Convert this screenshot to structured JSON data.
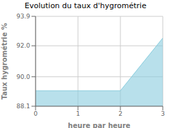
{
  "chart_data": {
    "type": "area",
    "title": "Evolution du taux d'hygrométrie",
    "xlabel": "heure par heure",
    "ylabel": "Taux hygrométrie %",
    "x": [
      0,
      2,
      3
    ],
    "values": [
      89.1,
      89.1,
      92.5
    ],
    "color": "#88ccdd",
    "xlim": [
      0,
      3
    ],
    "ylim": [
      88.1,
      93.9
    ],
    "xticks": [
      0,
      1,
      2,
      3
    ],
    "yticks": [
      88.1,
      {
        "value": 90.0,
        "label": "90.0"
      },
      {
        "value": 92.0,
        "label": "92.0"
      },
      93.9
    ],
    "grid": true
  }
}
